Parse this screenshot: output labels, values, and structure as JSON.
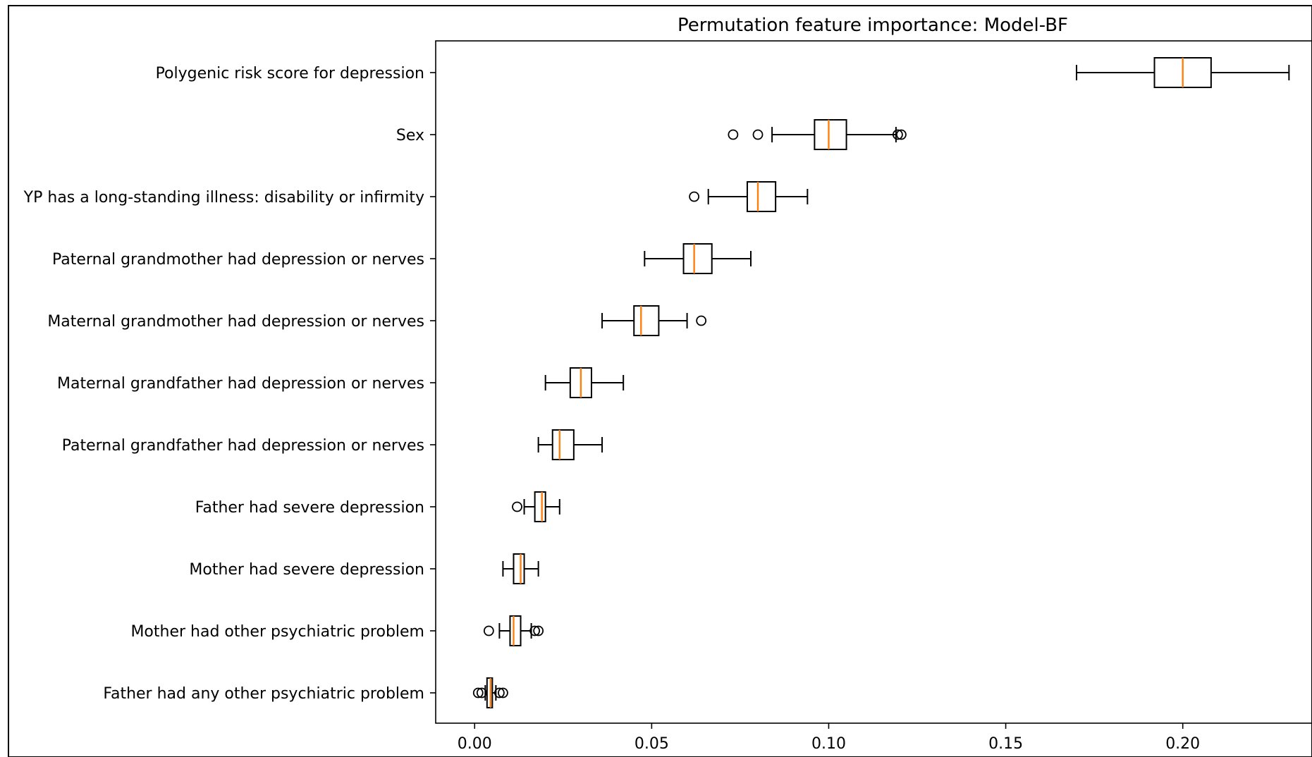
{
  "chart_data": {
    "type": "boxplot",
    "orientation": "horizontal",
    "title": "Permutation feature importance: Model-BF",
    "xlabel": "",
    "ylabel": "",
    "xlim": [
      -0.011,
      0.2365
    ],
    "grid": false,
    "xticks": [
      0.0,
      0.05,
      0.1,
      0.15,
      0.2
    ],
    "xtick_labels": [
      "0.00",
      "0.05",
      "0.10",
      "0.15",
      "0.20"
    ],
    "box_color": "#000000",
    "median_color": "#ff7f0e",
    "categories": [
      "Polygenic risk score for depression",
      "Sex",
      "YP has a long-standing illness: disability or infirmity",
      "Paternal grandmother had depression or nerves",
      "Maternal grandmother had depression or nerves",
      "Maternal grandfather had depression or nerves",
      "Paternal grandfather had depression or nerves",
      "Father had severe depression",
      "Mother had severe depression",
      "Mother had other psychiatric problem",
      "Father had any other psychiatric problem"
    ],
    "boxes": [
      {
        "whisker_low": 0.17,
        "q1": 0.192,
        "median": 0.2,
        "q3": 0.208,
        "whisker_high": 0.23,
        "fliers": []
      },
      {
        "whisker_low": 0.084,
        "q1": 0.096,
        "median": 0.1,
        "q3": 0.105,
        "whisker_high": 0.119,
        "fliers": [
          0.073,
          0.08,
          0.1195,
          0.1205
        ]
      },
      {
        "whisker_low": 0.066,
        "q1": 0.077,
        "median": 0.08,
        "q3": 0.085,
        "whisker_high": 0.094,
        "fliers": [
          0.062
        ]
      },
      {
        "whisker_low": 0.048,
        "q1": 0.059,
        "median": 0.062,
        "q3": 0.067,
        "whisker_high": 0.078,
        "fliers": []
      },
      {
        "whisker_low": 0.036,
        "q1": 0.045,
        "median": 0.047,
        "q3": 0.052,
        "whisker_high": 0.06,
        "fliers": [
          0.064
        ]
      },
      {
        "whisker_low": 0.02,
        "q1": 0.027,
        "median": 0.03,
        "q3": 0.033,
        "whisker_high": 0.042,
        "fliers": []
      },
      {
        "whisker_low": 0.018,
        "q1": 0.022,
        "median": 0.024,
        "q3": 0.028,
        "whisker_high": 0.036,
        "fliers": []
      },
      {
        "whisker_low": 0.014,
        "q1": 0.017,
        "median": 0.019,
        "q3": 0.02,
        "whisker_high": 0.024,
        "fliers": [
          0.012
        ]
      },
      {
        "whisker_low": 0.008,
        "q1": 0.011,
        "median": 0.013,
        "q3": 0.014,
        "whisker_high": 0.018,
        "fliers": []
      },
      {
        "whisker_low": 0.007,
        "q1": 0.01,
        "median": 0.011,
        "q3": 0.013,
        "whisker_high": 0.016,
        "fliers": [
          0.004,
          0.017,
          0.018
        ]
      },
      {
        "whisker_low": 0.003,
        "q1": 0.0035,
        "median": 0.0045,
        "q3": 0.005,
        "whisker_high": 0.006,
        "fliers": [
          0.001,
          0.002,
          0.007,
          0.008
        ]
      }
    ]
  }
}
